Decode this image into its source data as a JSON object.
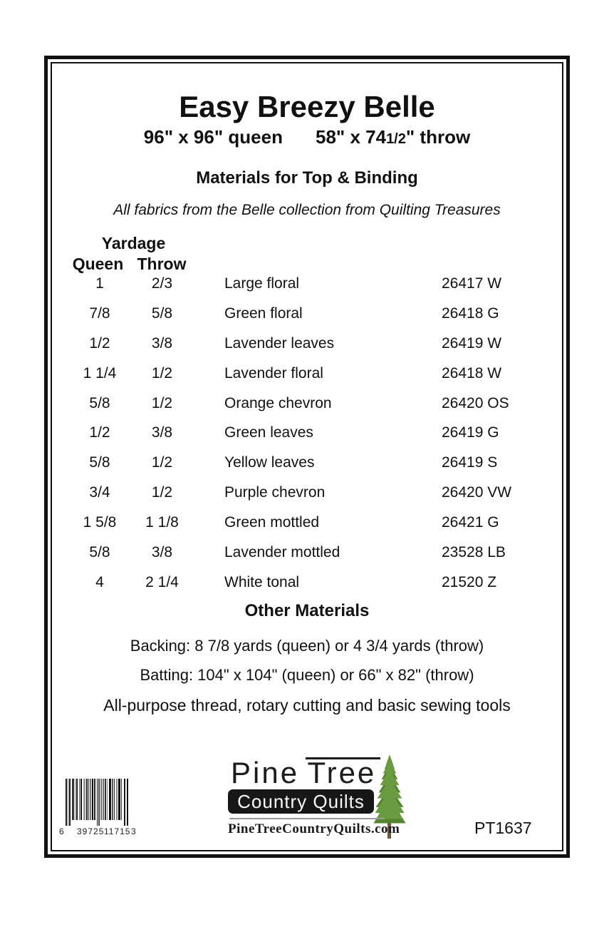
{
  "page": {
    "title": "Easy Breezy Belle",
    "subtitle": {
      "queen": "96\" x 96\" queen",
      "throw_prefix": "58\" x 74",
      "throw_fraction": "1/2",
      "throw_suffix": "\" throw"
    },
    "materials_heading": "Materials for Top & Binding",
    "fabric_note": "All fabrics from the Belle collection from Quilting Treasures"
  },
  "materials_table": {
    "group_header": "Yardage",
    "col_queen": "Queen",
    "col_throw": "Throw",
    "rows": [
      {
        "queen": "1",
        "throw": "2/3",
        "fabric": "Large floral",
        "code": "26417 W"
      },
      {
        "queen": "7/8",
        "throw": "5/8",
        "fabric": "Green floral",
        "code": "26418 G"
      },
      {
        "queen": "1/2",
        "throw": "3/8",
        "fabric": "Lavender leaves",
        "code": "26419 W"
      },
      {
        "queen": "1 1/4",
        "throw": "1/2",
        "fabric": "Lavender floral",
        "code": "26418 W"
      },
      {
        "queen": "5/8",
        "throw": "1/2",
        "fabric": "Orange chevron",
        "code": "26420 OS"
      },
      {
        "queen": "1/2",
        "throw": "3/8",
        "fabric": "Green leaves",
        "code": "26419 G"
      },
      {
        "queen": "5/8",
        "throw": "1/2",
        "fabric": "Yellow leaves",
        "code": "26419 S"
      },
      {
        "queen": "3/4",
        "throw": "1/2",
        "fabric": "Purple chevron",
        "code": "26420 VW"
      },
      {
        "queen": "1 5/8",
        "throw": "1 1/8",
        "fabric": "Green mottled",
        "code": "26421 G"
      },
      {
        "queen": "5/8",
        "throw": "3/8",
        "fabric": "Lavender mottled",
        "code": "23528 LB"
      },
      {
        "queen": "4",
        "throw": "2 1/4",
        "fabric": "White tonal",
        "code": "21520 Z"
      }
    ]
  },
  "other_materials": {
    "heading": "Other Materials",
    "backing": "Backing: 8 7/8 yards (queen) or 4 3/4 yards (throw)",
    "batting": "Batting: 104\" x 104\" (queen) or 66\" x 82\" (throw)",
    "notions": "All-purpose thread, rotary cutting and basic sewing tools"
  },
  "footer": {
    "barcode": {
      "left_digit": "6",
      "group1": "39725",
      "group2": "11715",
      "right_digit": "3"
    },
    "logo": {
      "word1": "Pine",
      "word2": "Tree",
      "line2": "Country Quilts",
      "website": "PineTreeCountryQuilts.com"
    },
    "pattern_number": "PT1637"
  },
  "colors": {
    "tree_green": "#6a9b40",
    "tree_green_dark": "#558431",
    "tree_trunk": "#6e5b3e",
    "logo_box": "#171717",
    "text": "#111111"
  }
}
